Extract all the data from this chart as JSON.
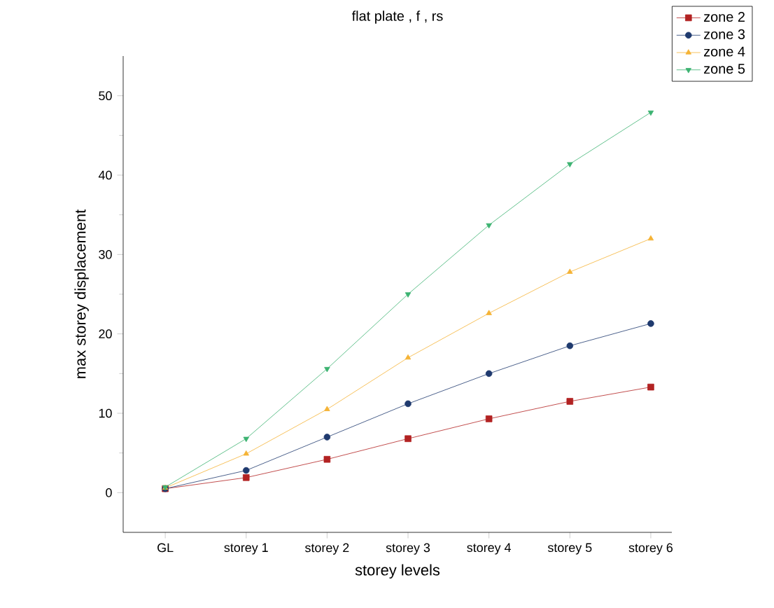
{
  "chart_data": {
    "type": "line",
    "title": "flat plate , f , rs",
    "xlabel": "storey levels",
    "ylabel": "max storey displacement",
    "categories": [
      "GL",
      "storey 1",
      "storey 2",
      "storey 3",
      "storey 4",
      "storey 5",
      "storey 6"
    ],
    "ylim": [
      -5,
      55
    ],
    "yticks": [
      0,
      10,
      20,
      30,
      40,
      50
    ],
    "grid": false,
    "legend": "top right",
    "series": [
      {
        "name": "zone 2",
        "color": "#b22222",
        "marker": "square",
        "values": [
          0.5,
          1.9,
          4.2,
          6.8,
          9.3,
          11.5,
          13.3
        ]
      },
      {
        "name": "zone 3",
        "color": "#1f3a6e",
        "marker": "circle",
        "values": [
          0.5,
          2.8,
          7.0,
          11.2,
          15.0,
          18.5,
          21.3
        ]
      },
      {
        "name": "zone 4",
        "color": "#f5b335",
        "marker": "triangle",
        "values": [
          0.6,
          4.9,
          10.5,
          17.0,
          22.6,
          27.8,
          32.0
        ]
      },
      {
        "name": "zone 5",
        "color": "#3cb371",
        "marker": "triangle down",
        "values": [
          0.7,
          6.8,
          15.6,
          25.0,
          33.7,
          41.4,
          47.9
        ]
      }
    ]
  }
}
